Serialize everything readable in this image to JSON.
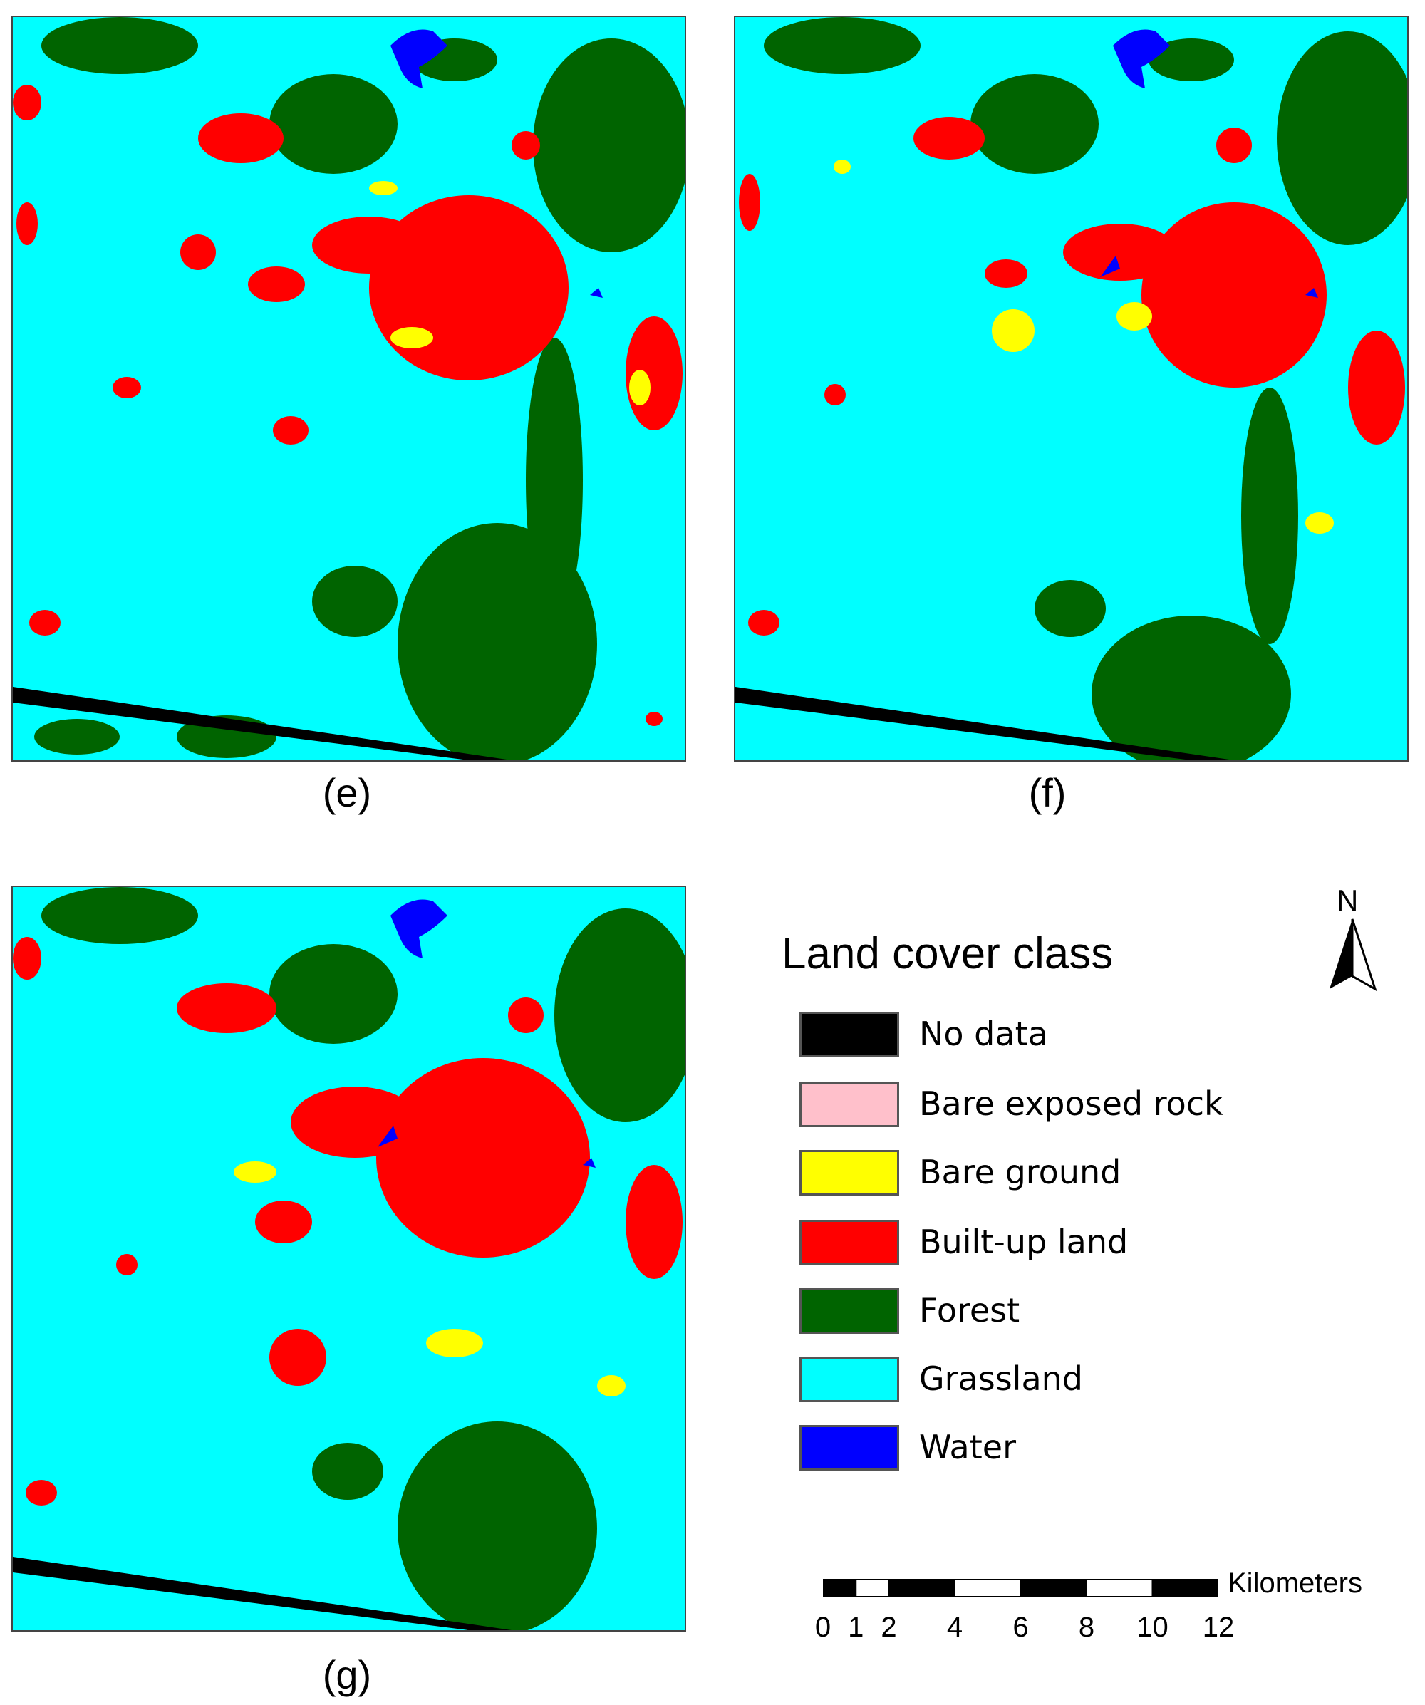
{
  "panels": [
    {
      "id": "e",
      "label": "(e)"
    },
    {
      "id": "f",
      "label": "(f)"
    },
    {
      "id": "g",
      "label": "(g)"
    }
  ],
  "legend": {
    "title": "Land cover class",
    "items": [
      {
        "label": "No data",
        "color": "#000000"
      },
      {
        "label": "Bare exposed rock",
        "color": "#ffc0cb"
      },
      {
        "label": "Bare ground",
        "color": "#ffff00"
      },
      {
        "label": "Built-up land",
        "color": "#ff0000"
      },
      {
        "label": "Forest",
        "color": "#006400"
      },
      {
        "label": "Grassland",
        "color": "#00ffff"
      },
      {
        "label": "Water",
        "color": "#0000ff"
      }
    ]
  },
  "north_arrow": {
    "label": "N"
  },
  "scale_bar": {
    "unit": "Kilometers",
    "ticks": [
      "0",
      "1",
      "2",
      "4",
      "6",
      "8",
      "10",
      "12"
    ],
    "tick_values_km": [
      0,
      1,
      2,
      4,
      6,
      8,
      10,
      12
    ]
  }
}
